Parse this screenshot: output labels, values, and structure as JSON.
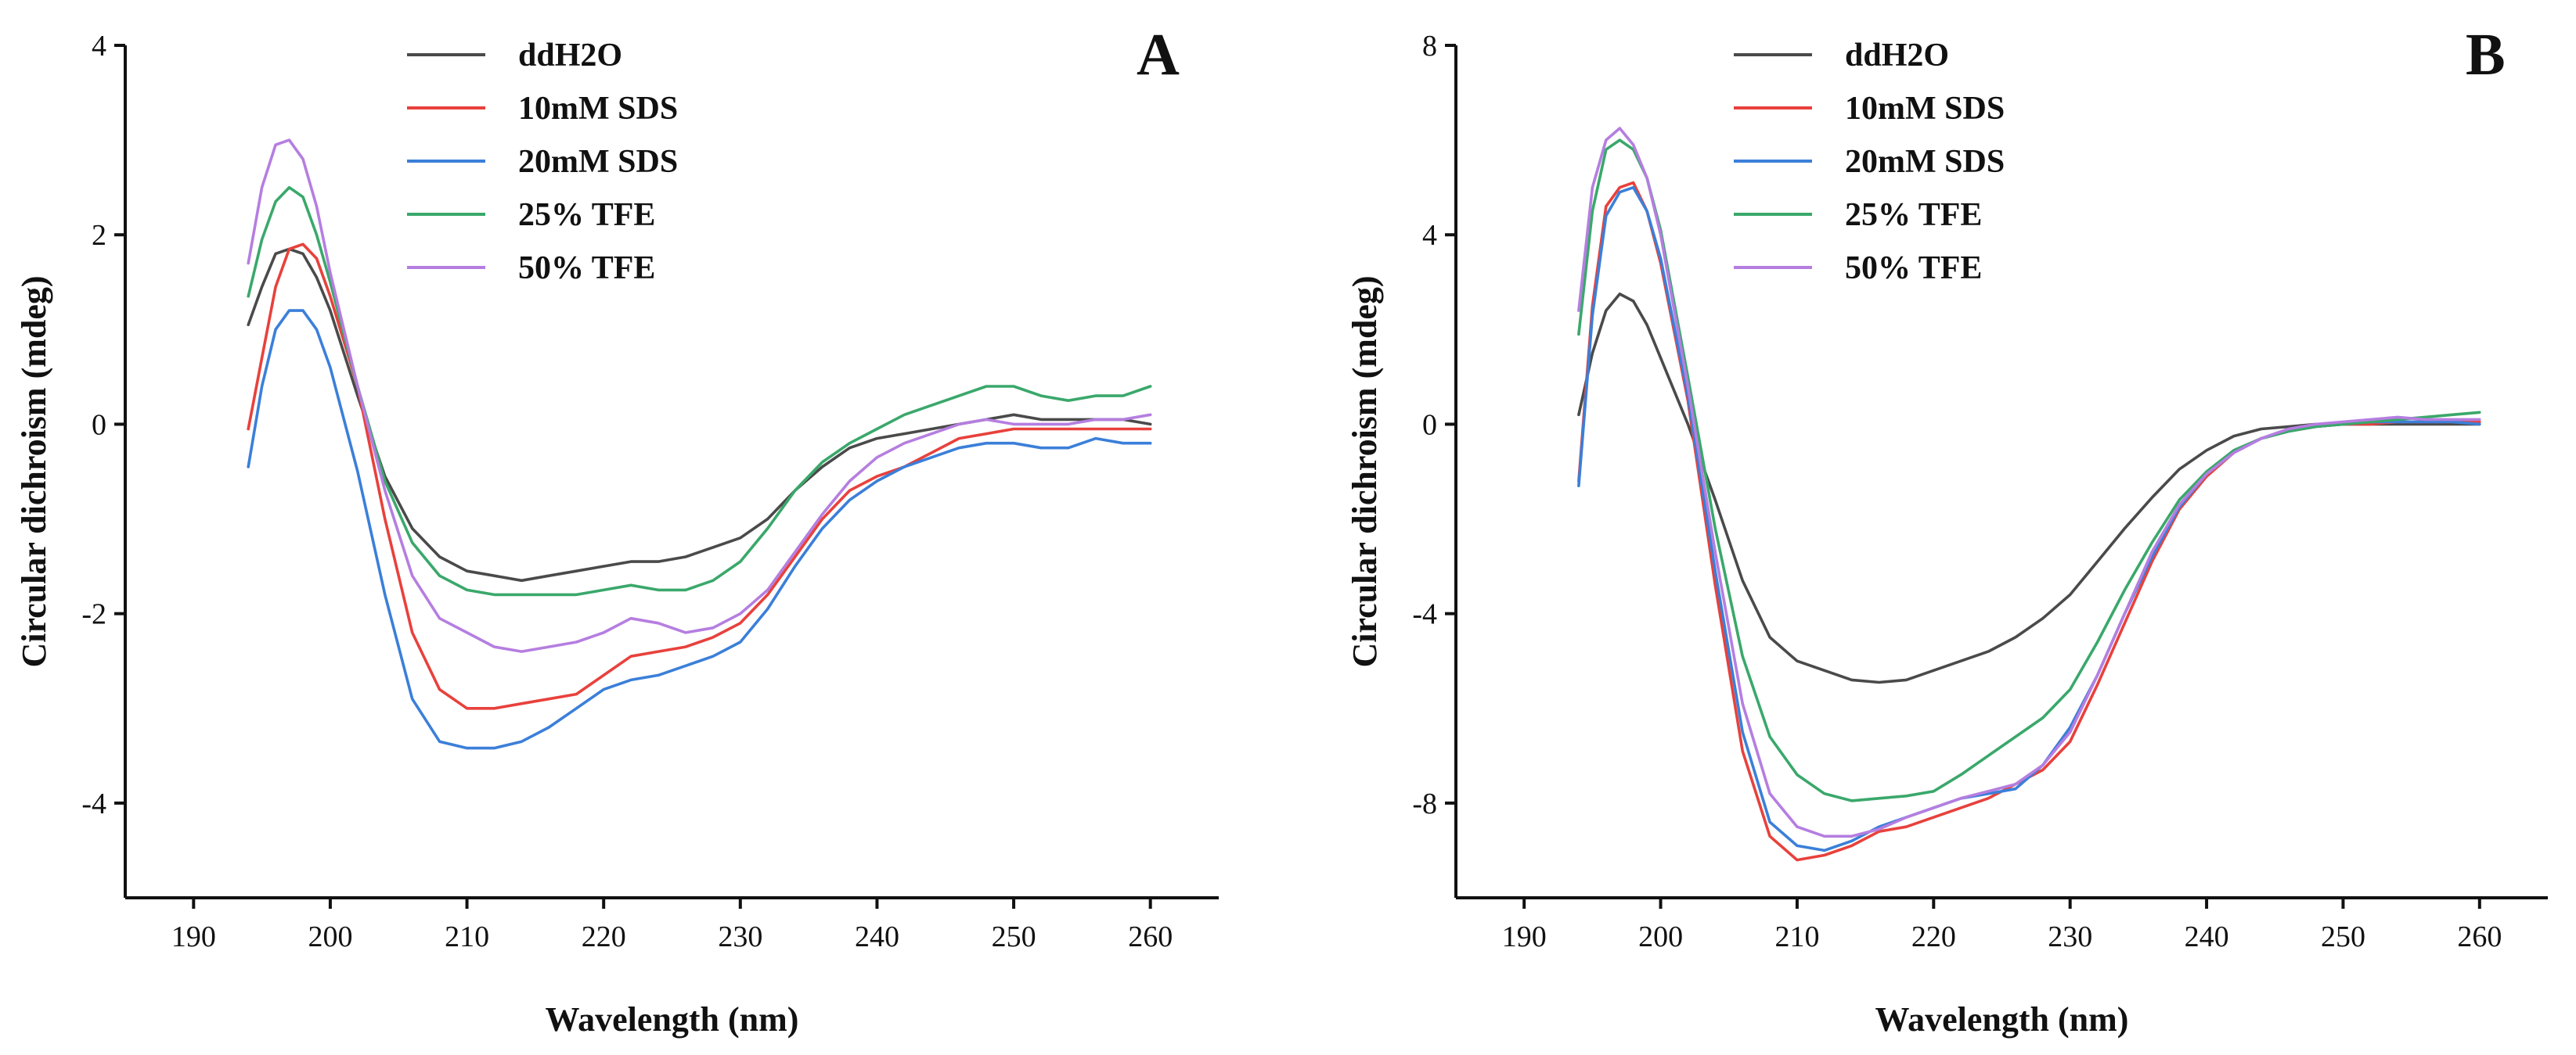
{
  "colors": {
    "ddH2O": "#4a4a4a",
    "10mM SDS": "#e8413c",
    "20mM SDS": "#3b7fd9",
    "25% TFE": "#3aa86b",
    "50% TFE": "#b57ee0"
  },
  "chart_data": [
    {
      "type": "line",
      "panel_label": "A",
      "title": "",
      "xlabel": "Wavelength (nm)",
      "ylabel": "Circular dichroism (mdeg)",
      "xlim": [
        185,
        265
      ],
      "ylim": [
        -5,
        4
      ],
      "xticks": [
        190,
        200,
        210,
        220,
        230,
        240,
        250,
        260
      ],
      "yticks": [
        -4,
        -2,
        0,
        2,
        4
      ],
      "grid": false,
      "legend_position": "top-center",
      "series": [
        {
          "name": "ddH2O",
          "x": [
            194,
            195,
            196,
            197,
            198,
            199,
            200,
            202,
            204,
            206,
            208,
            210,
            212,
            214,
            216,
            218,
            220,
            222,
            224,
            226,
            228,
            230,
            232,
            234,
            236,
            238,
            240,
            242,
            244,
            246,
            248,
            250,
            252,
            254,
            256,
            258,
            260
          ],
          "y": [
            1.05,
            1.45,
            1.8,
            1.85,
            1.8,
            1.55,
            1.2,
            0.3,
            -0.55,
            -1.1,
            -1.4,
            -1.55,
            -1.6,
            -1.65,
            -1.6,
            -1.55,
            -1.5,
            -1.45,
            -1.45,
            -1.4,
            -1.3,
            -1.2,
            -1.0,
            -0.7,
            -0.45,
            -0.25,
            -0.15,
            -0.1,
            -0.05,
            0.0,
            0.05,
            0.1,
            0.05,
            0.05,
            0.05,
            0.05,
            0.0
          ]
        },
        {
          "name": "10mM SDS",
          "x": [
            194,
            195,
            196,
            197,
            198,
            199,
            200,
            202,
            204,
            206,
            208,
            210,
            212,
            214,
            216,
            218,
            220,
            222,
            224,
            226,
            228,
            230,
            232,
            234,
            236,
            238,
            240,
            242,
            244,
            246,
            248,
            250,
            252,
            254,
            256,
            258,
            260
          ],
          "y": [
            -0.05,
            0.7,
            1.45,
            1.85,
            1.9,
            1.75,
            1.35,
            0.4,
            -1.0,
            -2.2,
            -2.8,
            -3.0,
            -3.0,
            -2.95,
            -2.9,
            -2.85,
            -2.65,
            -2.45,
            -2.4,
            -2.35,
            -2.25,
            -2.1,
            -1.8,
            -1.4,
            -1.0,
            -0.7,
            -0.55,
            -0.45,
            -0.3,
            -0.15,
            -0.1,
            -0.05,
            -0.05,
            -0.05,
            -0.05,
            -0.05,
            -0.05
          ]
        },
        {
          "name": "20mM SDS",
          "x": [
            194,
            195,
            196,
            197,
            198,
            199,
            200,
            202,
            204,
            206,
            208,
            210,
            212,
            214,
            216,
            218,
            220,
            222,
            224,
            226,
            228,
            230,
            232,
            234,
            236,
            238,
            240,
            242,
            244,
            246,
            248,
            250,
            252,
            254,
            256,
            258,
            260
          ],
          "y": [
            -0.45,
            0.4,
            1.0,
            1.2,
            1.2,
            1.0,
            0.6,
            -0.5,
            -1.8,
            -2.9,
            -3.35,
            -3.42,
            -3.42,
            -3.35,
            -3.2,
            -3.0,
            -2.8,
            -2.7,
            -2.65,
            -2.55,
            -2.45,
            -2.3,
            -1.95,
            -1.5,
            -1.1,
            -0.8,
            -0.6,
            -0.45,
            -0.35,
            -0.25,
            -0.2,
            -0.2,
            -0.25,
            -0.25,
            -0.15,
            -0.2,
            -0.2
          ]
        },
        {
          "name": "25% TFE",
          "x": [
            194,
            195,
            196,
            197,
            198,
            199,
            200,
            202,
            204,
            206,
            208,
            210,
            212,
            214,
            216,
            218,
            220,
            222,
            224,
            226,
            228,
            230,
            232,
            234,
            236,
            238,
            240,
            242,
            244,
            246,
            248,
            250,
            252,
            254,
            256,
            258,
            260
          ],
          "y": [
            1.35,
            1.95,
            2.35,
            2.5,
            2.4,
            2.0,
            1.5,
            0.4,
            -0.6,
            -1.25,
            -1.6,
            -1.75,
            -1.8,
            -1.8,
            -1.8,
            -1.8,
            -1.75,
            -1.7,
            -1.75,
            -1.75,
            -1.65,
            -1.45,
            -1.1,
            -0.7,
            -0.4,
            -0.2,
            -0.05,
            0.1,
            0.2,
            0.3,
            0.4,
            0.4,
            0.3,
            0.25,
            0.3,
            0.3,
            0.4
          ]
        },
        {
          "name": "50% TFE",
          "x": [
            194,
            195,
            196,
            197,
            198,
            199,
            200,
            202,
            204,
            206,
            208,
            210,
            212,
            214,
            216,
            218,
            220,
            222,
            224,
            226,
            228,
            230,
            232,
            234,
            236,
            238,
            240,
            242,
            244,
            246,
            248,
            250,
            252,
            254,
            256,
            258,
            260
          ],
          "y": [
            1.7,
            2.5,
            2.95,
            3.0,
            2.8,
            2.3,
            1.6,
            0.4,
            -0.7,
            -1.6,
            -2.05,
            -2.2,
            -2.35,
            -2.4,
            -2.35,
            -2.3,
            -2.2,
            -2.05,
            -2.1,
            -2.2,
            -2.15,
            -2.0,
            -1.75,
            -1.35,
            -0.95,
            -0.6,
            -0.35,
            -0.2,
            -0.1,
            0.0,
            0.05,
            0.0,
            0.0,
            0.0,
            0.05,
            0.05,
            0.1
          ]
        }
      ]
    },
    {
      "type": "line",
      "panel_label": "B",
      "title": "",
      "xlabel": "Wavelength (nm)",
      "ylabel": "Circular dichroism (mdeg)",
      "xlim": [
        185,
        265
      ],
      "ylim": [
        -10,
        8
      ],
      "xticks": [
        190,
        200,
        210,
        220,
        230,
        240,
        250,
        260
      ],
      "yticks": [
        -8,
        -4,
        0,
        4,
        8
      ],
      "grid": false,
      "legend_position": "top-center",
      "series": [
        {
          "name": "ddH2O",
          "x": [
            194,
            195,
            196,
            197,
            198,
            199,
            200,
            202,
            204,
            206,
            208,
            210,
            212,
            214,
            216,
            218,
            220,
            222,
            224,
            226,
            228,
            230,
            232,
            234,
            236,
            238,
            240,
            242,
            244,
            246,
            248,
            250,
            252,
            254,
            256,
            258,
            260
          ],
          "y": [
            0.2,
            1.5,
            2.4,
            2.75,
            2.6,
            2.1,
            1.4,
            0.0,
            -1.6,
            -3.3,
            -4.5,
            -5.0,
            -5.2,
            -5.4,
            -5.45,
            -5.4,
            -5.2,
            -5.0,
            -4.8,
            -4.5,
            -4.1,
            -3.6,
            -2.9,
            -2.2,
            -1.55,
            -0.95,
            -0.55,
            -0.25,
            -0.1,
            -0.05,
            0.0,
            0.0,
            0.0,
            0.0,
            0.0,
            0.0,
            0.0
          ]
        },
        {
          "name": "10mM SDS",
          "x": [
            194,
            195,
            196,
            197,
            198,
            199,
            200,
            202,
            204,
            206,
            208,
            210,
            212,
            214,
            216,
            218,
            220,
            222,
            224,
            226,
            228,
            230,
            232,
            234,
            236,
            238,
            240,
            242,
            244,
            246,
            248,
            250,
            252,
            254,
            256,
            258,
            260
          ],
          "y": [
            -1.2,
            2.5,
            4.6,
            5.0,
            5.1,
            4.5,
            3.4,
            0.5,
            -3.4,
            -6.9,
            -8.7,
            -9.2,
            -9.1,
            -8.9,
            -8.6,
            -8.5,
            -8.3,
            -8.1,
            -7.9,
            -7.6,
            -7.3,
            -6.7,
            -5.5,
            -4.2,
            -2.9,
            -1.8,
            -1.1,
            -0.6,
            -0.3,
            -0.15,
            -0.05,
            0.0,
            0.0,
            0.05,
            0.05,
            0.05,
            0.05
          ]
        },
        {
          "name": "20mM SDS",
          "x": [
            194,
            195,
            196,
            197,
            198,
            199,
            200,
            202,
            204,
            206,
            208,
            210,
            212,
            214,
            216,
            218,
            220,
            222,
            224,
            226,
            228,
            230,
            232,
            234,
            236,
            238,
            240,
            242,
            244,
            246,
            248,
            250,
            252,
            254,
            256,
            258,
            260
          ],
          "y": [
            -1.3,
            2.3,
            4.4,
            4.9,
            5.0,
            4.5,
            3.5,
            0.6,
            -3.1,
            -6.5,
            -8.4,
            -8.9,
            -9.0,
            -8.8,
            -8.5,
            -8.3,
            -8.1,
            -7.9,
            -7.8,
            -7.7,
            -7.2,
            -6.4,
            -5.3,
            -4.0,
            -2.8,
            -1.75,
            -1.05,
            -0.6,
            -0.3,
            -0.15,
            -0.05,
            0.0,
            0.05,
            0.05,
            0.05,
            0.05,
            0.0
          ]
        },
        {
          "name": "25% TFE",
          "x": [
            194,
            195,
            196,
            197,
            198,
            199,
            200,
            202,
            204,
            206,
            208,
            210,
            212,
            214,
            216,
            218,
            220,
            222,
            224,
            226,
            228,
            230,
            232,
            234,
            236,
            238,
            240,
            242,
            244,
            246,
            248,
            250,
            252,
            254,
            256,
            258,
            260
          ],
          "y": [
            1.9,
            4.5,
            5.8,
            6.0,
            5.8,
            5.2,
            4.1,
            1.0,
            -2.2,
            -4.9,
            -6.6,
            -7.4,
            -7.8,
            -7.95,
            -7.9,
            -7.85,
            -7.75,
            -7.4,
            -7.0,
            -6.6,
            -6.2,
            -5.6,
            -4.6,
            -3.5,
            -2.5,
            -1.6,
            -1.0,
            -0.55,
            -0.3,
            -0.15,
            -0.05,
            0.0,
            0.05,
            0.1,
            0.15,
            0.2,
            0.25
          ]
        },
        {
          "name": "50% TFE",
          "x": [
            194,
            195,
            196,
            197,
            198,
            199,
            200,
            202,
            204,
            206,
            208,
            210,
            212,
            214,
            216,
            218,
            220,
            222,
            224,
            226,
            228,
            230,
            232,
            234,
            236,
            238,
            240,
            242,
            244,
            246,
            248,
            250,
            252,
            254,
            256,
            258,
            260
          ],
          "y": [
            2.4,
            5.0,
            6.0,
            6.25,
            5.9,
            5.2,
            4.0,
            0.8,
            -2.7,
            -5.9,
            -7.8,
            -8.5,
            -8.7,
            -8.7,
            -8.55,
            -8.3,
            -8.1,
            -7.9,
            -7.75,
            -7.6,
            -7.2,
            -6.5,
            -5.3,
            -4.0,
            -2.7,
            -1.7,
            -1.05,
            -0.6,
            -0.3,
            -0.1,
            0.0,
            0.05,
            0.1,
            0.15,
            0.1,
            0.1,
            0.1
          ]
        }
      ]
    }
  ]
}
